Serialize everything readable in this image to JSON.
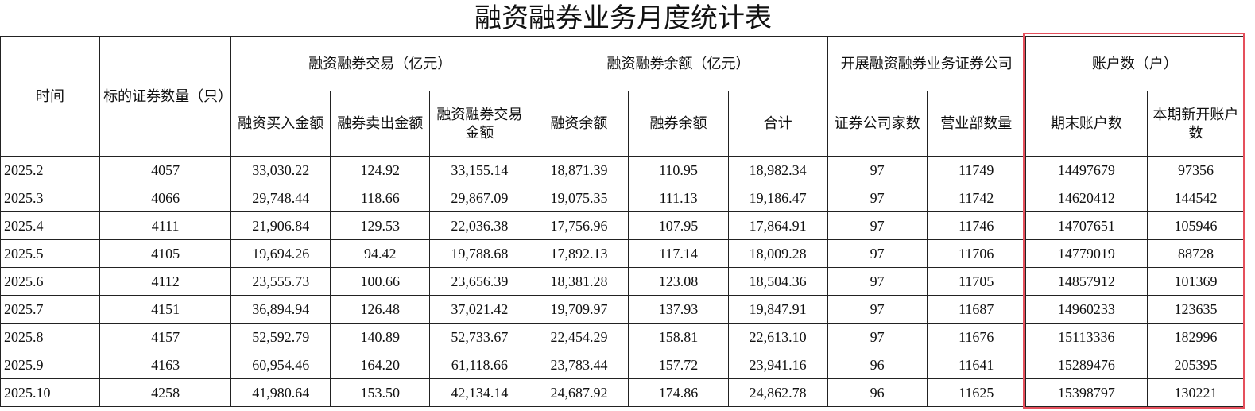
{
  "title": "融资融券业务月度统计表",
  "header_groups": [
    {
      "label": "时间"
    },
    {
      "label": "标的证券数量（只）"
    },
    {
      "label": "融资融券交易（亿元）",
      "columns": [
        "融资买入金额",
        "融券卖出金额",
        "融资融券交易金额"
      ]
    },
    {
      "label": "融资融券余额（亿元）",
      "columns": [
        "融资余额",
        "融券余额",
        "合计"
      ]
    },
    {
      "label": "开展融资融券业务证券公司",
      "columns": [
        "证券公司家数",
        "营业部数量"
      ]
    },
    {
      "label": "账户数（户）",
      "columns": [
        "期末账户数",
        "本期新开账户数"
      ]
    }
  ],
  "rows": [
    [
      "2025.2",
      "4057",
      "33,030.22",
      "124.92",
      "33,155.14",
      "18,871.39",
      "110.95",
      "18,982.34",
      "97",
      "11749",
      "14497679",
      "97356"
    ],
    [
      "2025.3",
      "4066",
      "29,748.44",
      "118.66",
      "29,867.09",
      "19,075.35",
      "111.13",
      "19,186.47",
      "97",
      "11742",
      "14620412",
      "144542"
    ],
    [
      "2025.4",
      "4111",
      "21,906.84",
      "129.53",
      "22,036.38",
      "17,756.96",
      "107.95",
      "17,864.91",
      "97",
      "11746",
      "14707651",
      "105946"
    ],
    [
      "2025.5",
      "4105",
      "19,694.26",
      "94.42",
      "19,788.68",
      "17,892.13",
      "117.14",
      "18,009.28",
      "97",
      "11706",
      "14779019",
      "88728"
    ],
    [
      "2025.6",
      "4112",
      "23,555.73",
      "100.66",
      "23,656.39",
      "18,381.28",
      "123.08",
      "18,504.36",
      "97",
      "11705",
      "14857912",
      "101369"
    ],
    [
      "2025.7",
      "4151",
      "36,894.94",
      "126.48",
      "37,021.42",
      "19,709.97",
      "137.93",
      "19,847.91",
      "97",
      "11687",
      "14960233",
      "123635"
    ],
    [
      "2025.8",
      "4157",
      "52,592.79",
      "140.89",
      "52,733.67",
      "22,454.29",
      "158.81",
      "22,613.10",
      "97",
      "11676",
      "15113336",
      "182996"
    ],
    [
      "2025.9",
      "4163",
      "60,954.46",
      "164.20",
      "61,118.66",
      "23,783.44",
      "157.72",
      "23,941.16",
      "96",
      "11641",
      "15289476",
      "205395"
    ],
    [
      "2025.10",
      "4258",
      "41,980.64",
      "153.50",
      "42,134.14",
      "24,687.92",
      "174.86",
      "24,862.78",
      "96",
      "11625",
      "15398797",
      "130221"
    ]
  ]
}
